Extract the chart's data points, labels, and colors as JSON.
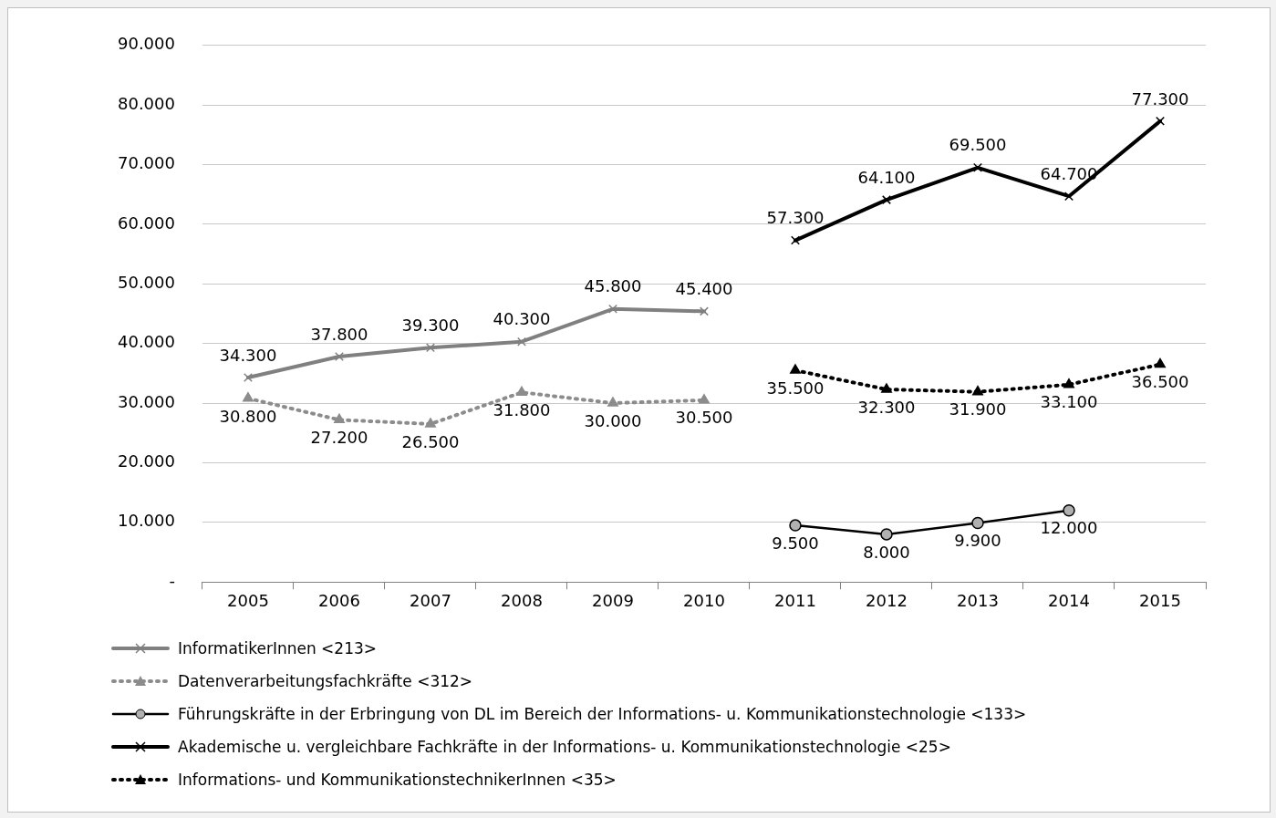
{
  "chart_data": {
    "type": "line",
    "categories": [
      "2005",
      "2006",
      "2007",
      "2008",
      "2009",
      "2010",
      "2011",
      "2012",
      "2013",
      "2014",
      "2015"
    ],
    "ylim": [
      0,
      90000
    ],
    "yticks": [
      {
        "value": 0,
        "label": "-"
      },
      {
        "value": 10000,
        "label": "10.000"
      },
      {
        "value": 20000,
        "label": "20.000"
      },
      {
        "value": 30000,
        "label": "30.000"
      },
      {
        "value": 40000,
        "label": "40.000"
      },
      {
        "value": 50000,
        "label": "50.000"
      },
      {
        "value": 60000,
        "label": "60.000"
      },
      {
        "value": 70000,
        "label": "70.000"
      },
      {
        "value": 80000,
        "label": "80.000"
      },
      {
        "value": 90000,
        "label": "90.000"
      }
    ],
    "grid": "y",
    "legend": "bottom",
    "series": [
      {
        "name": "InformatikerInnen <213>",
        "color": "#808080",
        "marker": "cross",
        "line_style": "solid",
        "values": [
          34300,
          37800,
          39300,
          40300,
          45800,
          45400,
          null,
          null,
          null,
          null,
          null
        ],
        "value_labels": [
          "34.300",
          "37.800",
          "39.300",
          "40.300",
          "45.800",
          "45.400",
          null,
          null,
          null,
          null,
          null
        ]
      },
      {
        "name": "Datenverarbeitungsfachkräfte <312>",
        "color": "#8c8c8c",
        "marker": "triangle",
        "line_style": "dotted",
        "values": [
          30800,
          27200,
          26500,
          31800,
          30000,
          30500,
          null,
          null,
          null,
          null,
          null
        ],
        "value_labels": [
          "30.800",
          "27.200",
          "26.500",
          "31.800",
          "30.000",
          "30.500",
          null,
          null,
          null,
          null,
          null
        ]
      },
      {
        "name": "Führungskräfte in der Erbringung von DL im Bereich der Informations- u. Kommunikationstechnologie <133>",
        "color": "#000000",
        "marker": "circle",
        "line_style": "solid",
        "values": [
          null,
          null,
          null,
          null,
          null,
          null,
          9500,
          8000,
          9900,
          12000,
          null
        ],
        "value_labels": [
          null,
          null,
          null,
          null,
          null,
          null,
          "9.500",
          "8.000",
          "9.900",
          "12.000",
          null
        ]
      },
      {
        "name": "Akademische u. vergleichbare Fachkräfte in der Informations- u. Kommunikationstechnologie <25>",
        "color": "#000000",
        "marker": "cross",
        "line_style": "solid",
        "values": [
          null,
          null,
          null,
          null,
          null,
          null,
          57300,
          64100,
          69500,
          64700,
          77300
        ],
        "value_labels": [
          null,
          null,
          null,
          null,
          null,
          null,
          "57.300",
          "64.100",
          "69.500",
          "64.700",
          "77.300"
        ]
      },
      {
        "name": "Informations- und KommunikationstechnikerInnen <35>",
        "color": "#000000",
        "marker": "triangle",
        "line_style": "dotted",
        "values": [
          null,
          null,
          null,
          null,
          null,
          null,
          35500,
          32300,
          31900,
          33100,
          36500
        ],
        "value_labels": [
          null,
          null,
          null,
          null,
          null,
          null,
          "35.500",
          "32.300",
          "31.900",
          "33.100",
          "36.500"
        ]
      }
    ]
  }
}
